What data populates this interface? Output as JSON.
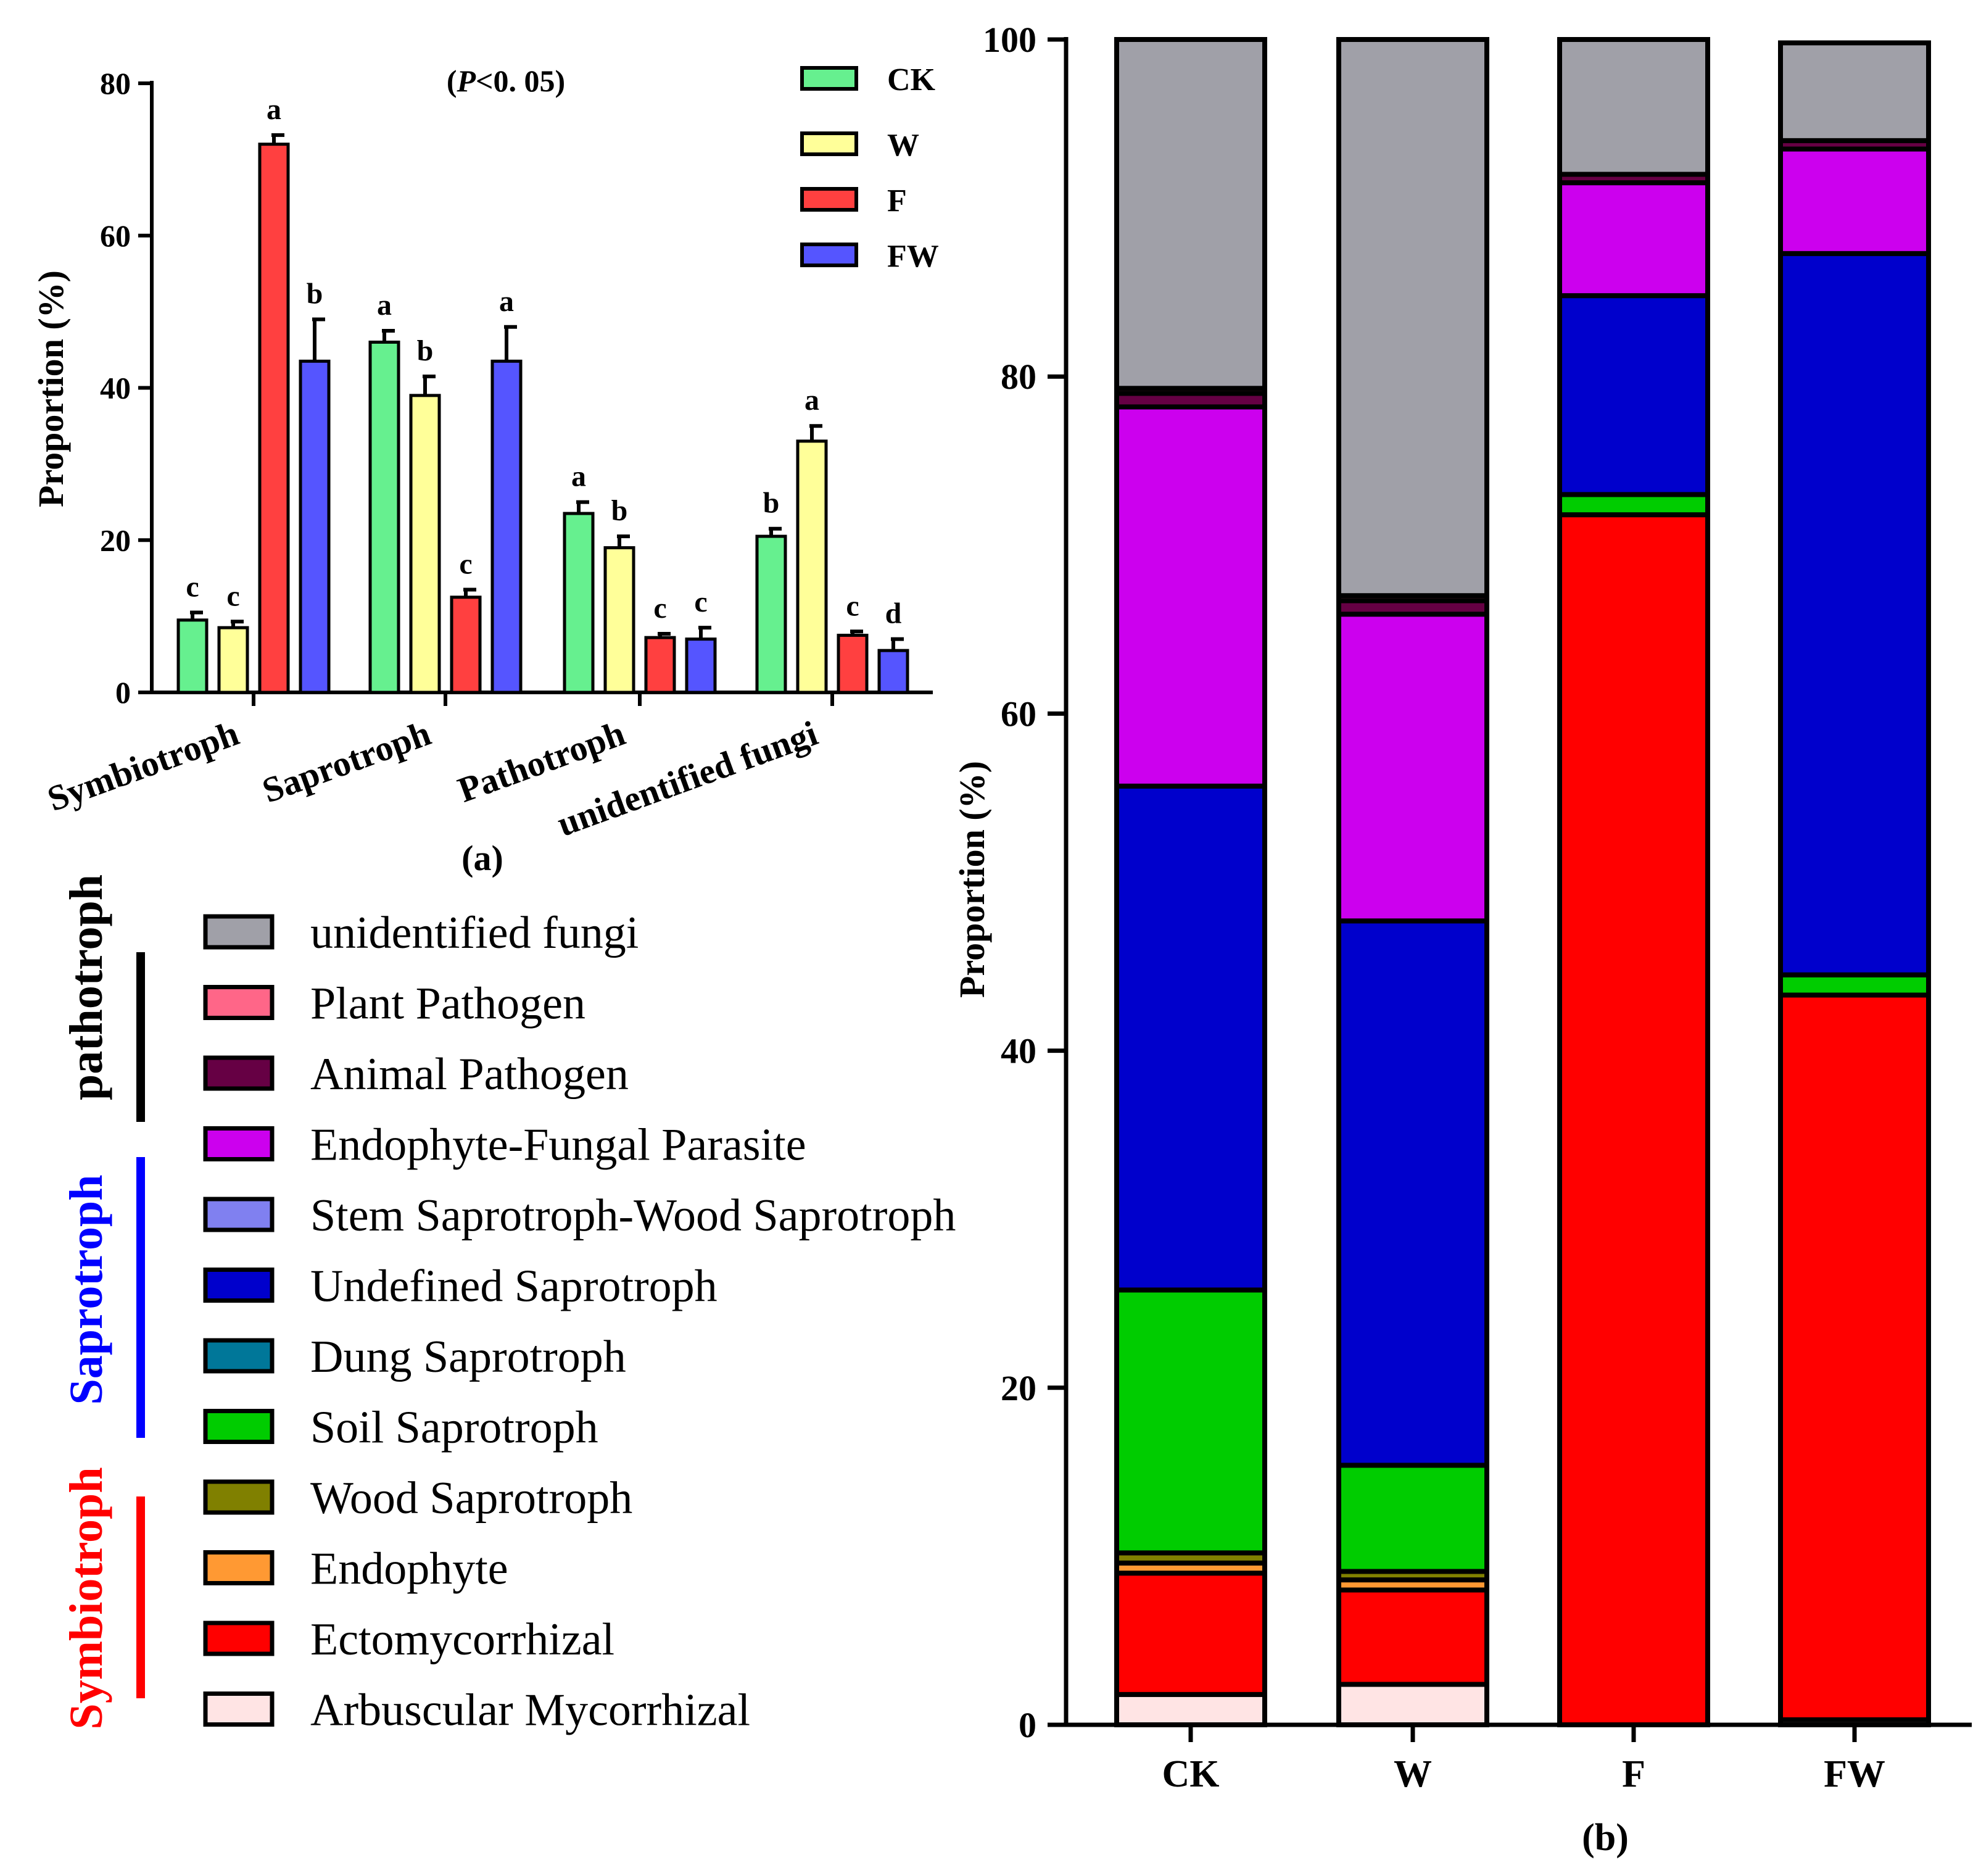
{
  "chart_data": [
    {
      "id": "a",
      "type": "bar",
      "panel_label": "(a)",
      "significance_note": {
        "prefix": "(",
        "italic": "P",
        "suffix": "<0. 05)"
      },
      "ylabel": "Proportion (%)",
      "ylim": [
        0,
        80
      ],
      "yticks": [
        0,
        20,
        40,
        60,
        80
      ],
      "categories": [
        "Symbiotroph",
        "Saprotroph",
        "Pathotroph",
        "unidentified fungi"
      ],
      "series": [
        {
          "name": "CK",
          "color": "#66f08f",
          "values": [
            9.5,
            46,
            23.5,
            20.5
          ],
          "errors": [
            1.0,
            1.5,
            1.5,
            1.0
          ],
          "letters": [
            "c",
            "a",
            "a",
            "b"
          ]
        },
        {
          "name": "W",
          "color": "#ffff99",
          "values": [
            8.5,
            39,
            19,
            33
          ],
          "errors": [
            0.8,
            2.5,
            1.5,
            2.0
          ],
          "letters": [
            "c",
            "b",
            "b",
            "a"
          ]
        },
        {
          "name": "F",
          "color": "#ff4040",
          "values": [
            72,
            12.5,
            7.2,
            7.5
          ],
          "errors": [
            1.2,
            1.0,
            0.5,
            0.5
          ],
          "letters": [
            "a",
            "c",
            "c",
            "c"
          ]
        },
        {
          "name": "FW",
          "color": "#5555ff",
          "values": [
            43.5,
            43.5,
            7,
            5.5
          ],
          "errors": [
            5.5,
            4.5,
            1.5,
            1.5
          ],
          "letters": [
            "b",
            "a",
            "c",
            "d"
          ]
        }
      ]
    },
    {
      "id": "b",
      "type": "stacked_bar",
      "panel_label": "(b)",
      "ylabel": "Proportion (%)",
      "ylim": [
        0,
        100
      ],
      "yticks": [
        0,
        20,
        40,
        60,
        80,
        100
      ],
      "categories": [
        "CK",
        "W",
        "F",
        "FW"
      ],
      "series": [
        {
          "name": "Arbuscular Mycorrhizal",
          "color": "#ffe4e4",
          "values": [
            1.8,
            2.4,
            0,
            0.3
          ]
        },
        {
          "name": "Ectomycorrhizal",
          "color": "#ff0000",
          "values": [
            7.2,
            5.6,
            71.8,
            43.0
          ]
        },
        {
          "name": "Endophyte",
          "color": "#ff9933",
          "values": [
            0.6,
            0.6,
            0,
            0
          ]
        },
        {
          "name": "Wood Saprotroph",
          "color": "#808000",
          "values": [
            0.6,
            0.5,
            0,
            0
          ]
        },
        {
          "name": "Soil Saprotroph",
          "color": "#00cc00",
          "values": [
            15.6,
            6.3,
            1.2,
            1.2
          ]
        },
        {
          "name": "Dung Saprotroph",
          "color": "#007799",
          "values": [
            0,
            0,
            0,
            0
          ]
        },
        {
          "name": "Undefined Saprotroph",
          "color": "#0000cc",
          "values": [
            29.9,
            32.3,
            11.8,
            42.8
          ]
        },
        {
          "name": "Stem Saprotroph-Wood Saprotroph",
          "color": "#8080f0",
          "values": [
            0,
            0,
            0,
            0
          ]
        },
        {
          "name": "Endophyte-Fungal Parasite",
          "color": "#cc00ee",
          "values": [
            22.5,
            18.2,
            6.7,
            6.2
          ]
        },
        {
          "name": "Animal Pathogen",
          "color": "#660044",
          "values": [
            0.8,
            0.8,
            0.5,
            0.5
          ]
        },
        {
          "name": "Plant Pathogen",
          "color": "#ff6688",
          "values": [
            0.3,
            0.3,
            0,
            0
          ]
        },
        {
          "name": "unidentified fungi",
          "color": "#a0a0a8",
          "values": [
            20.7,
            33.0,
            8.0,
            5.8
          ]
        }
      ]
    }
  ],
  "legend_b": {
    "items": [
      "unidentified fungi",
      "Plant Pathogen",
      "Animal Pathogen",
      "Endophyte-Fungal Parasite",
      "Stem Saprotroph-Wood Saprotroph",
      "Undefined Saprotroph",
      "Dung Saprotroph",
      "Soil Saprotroph",
      "Wood Saprotroph",
      "Endophyte",
      "Ectomycorrhizal",
      "Arbuscular Mycorrhizal"
    ],
    "groups": [
      {
        "label": "pathotroph",
        "color": "#000000"
      },
      {
        "label": "Saprotroph",
        "color": "#0000ff"
      },
      {
        "label": "Symbiotroph",
        "color": "#ff0000"
      }
    ]
  }
}
